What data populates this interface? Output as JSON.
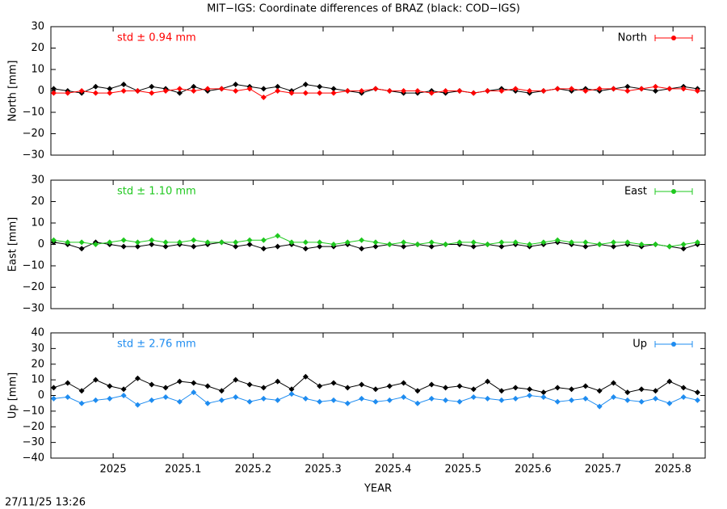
{
  "title": "MIT−IGS: Coordinate differences of BRAZ (black: COD−IGS)",
  "timestamp": "27/11/25 13:26",
  "chart_data": [
    {
      "type": "line",
      "ylabel": "North [mm]",
      "annotation": "std ± 0.94 mm",
      "x": [
        2024.915,
        2024.935,
        2024.955,
        2024.975,
        2024.995,
        2025.015,
        2025.035,
        2025.055,
        2025.075,
        2025.095,
        2025.115,
        2025.135,
        2025.155,
        2025.175,
        2025.195,
        2025.215,
        2025.235,
        2025.255,
        2025.275,
        2025.295,
        2025.315,
        2025.335,
        2025.355,
        2025.375,
        2025.395,
        2025.415,
        2025.435,
        2025.455,
        2025.475,
        2025.495,
        2025.515,
        2025.535,
        2025.555,
        2025.575,
        2025.595,
        2025.615,
        2025.635,
        2025.655,
        2025.675,
        2025.695,
        2025.715,
        2025.735,
        2025.755,
        2025.775,
        2025.795,
        2025.815,
        2025.835
      ],
      "xlim": [
        2024.911,
        2025.846
      ],
      "ylim": [
        -30,
        30
      ],
      "yticks": [
        {
          "value": -30,
          "label": "−30"
        },
        {
          "value": -20,
          "label": "−20"
        },
        {
          "value": -10,
          "label": "−10"
        },
        0,
        10,
        20,
        30
      ],
      "series": [
        {
          "color": "#000000",
          "values": [
            1,
            0,
            -1,
            2,
            1,
            3,
            0,
            2,
            1,
            -1,
            2,
            0,
            1,
            3,
            2,
            1,
            2,
            0,
            3,
            2,
            1,
            0,
            -1,
            1,
            0,
            -1,
            -1,
            0,
            -1,
            0,
            -1,
            0,
            1,
            0,
            -1,
            0,
            1,
            0,
            1,
            0,
            1,
            2,
            1,
            0,
            1,
            2,
            1
          ]
        },
        {
          "name": "North",
          "color": "#ff0000",
          "values": [
            -1,
            -1,
            0,
            -1,
            -1,
            0,
            0,
            -1,
            0,
            1,
            0,
            1,
            1,
            0,
            1,
            -3,
            0,
            -1,
            -1,
            -1,
            -1,
            0,
            0,
            1,
            0,
            0,
            0,
            -1,
            0,
            0,
            -1,
            0,
            0,
            1,
            0,
            0,
            1,
            1,
            0,
            1,
            1,
            0,
            1,
            2,
            1,
            1,
            0
          ]
        }
      ]
    },
    {
      "type": "line",
      "ylabel": "East [mm]",
      "annotation": "std ± 1.10 mm",
      "x": [
        2024.915,
        2024.935,
        2024.955,
        2024.975,
        2024.995,
        2025.015,
        2025.035,
        2025.055,
        2025.075,
        2025.095,
        2025.115,
        2025.135,
        2025.155,
        2025.175,
        2025.195,
        2025.215,
        2025.235,
        2025.255,
        2025.275,
        2025.295,
        2025.315,
        2025.335,
        2025.355,
        2025.375,
        2025.395,
        2025.415,
        2025.435,
        2025.455,
        2025.475,
        2025.495,
        2025.515,
        2025.535,
        2025.555,
        2025.575,
        2025.595,
        2025.615,
        2025.635,
        2025.655,
        2025.675,
        2025.695,
        2025.715,
        2025.735,
        2025.755,
        2025.775,
        2025.795,
        2025.815,
        2025.835
      ],
      "xlim": [
        2024.911,
        2025.846
      ],
      "ylim": [
        -30,
        30
      ],
      "yticks": [
        {
          "value": -30,
          "label": "−30"
        },
        {
          "value": -20,
          "label": "−20"
        },
        {
          "value": -10,
          "label": "−10"
        },
        0,
        10,
        20,
        30
      ],
      "series": [
        {
          "color": "#000000",
          "values": [
            1,
            0,
            -2,
            1,
            0,
            -1,
            -1,
            0,
            -1,
            0,
            -1,
            0,
            1,
            -1,
            0,
            -2,
            -1,
            0,
            -2,
            -1,
            -1,
            0,
            -2,
            -1,
            0,
            -1,
            0,
            -1,
            0,
            0,
            -1,
            0,
            -1,
            0,
            -1,
            0,
            1,
            0,
            -1,
            0,
            -1,
            0,
            -1,
            0,
            -1,
            -2,
            0
          ]
        },
        {
          "name": "East",
          "color": "#1ec81e",
          "values": [
            2,
            1,
            1,
            0,
            1,
            2,
            1,
            2,
            1,
            1,
            2,
            1,
            1,
            1,
            2,
            2,
            4,
            1,
            1,
            1,
            0,
            1,
            2,
            1,
            0,
            1,
            0,
            1,
            0,
            1,
            1,
            0,
            1,
            1,
            0,
            1,
            2,
            1,
            1,
            0,
            1,
            1,
            0,
            0,
            -1,
            0,
            1
          ]
        }
      ]
    },
    {
      "type": "line",
      "ylabel": "Up [mm]",
      "annotation": "std ± 2.76 mm",
      "xlabel": "YEAR",
      "x": [
        2024.915,
        2024.935,
        2024.955,
        2024.975,
        2024.995,
        2025.015,
        2025.035,
        2025.055,
        2025.075,
        2025.095,
        2025.115,
        2025.135,
        2025.155,
        2025.175,
        2025.195,
        2025.215,
        2025.235,
        2025.255,
        2025.275,
        2025.295,
        2025.315,
        2025.335,
        2025.355,
        2025.375,
        2025.395,
        2025.415,
        2025.435,
        2025.455,
        2025.475,
        2025.495,
        2025.515,
        2025.535,
        2025.555,
        2025.575,
        2025.595,
        2025.615,
        2025.635,
        2025.655,
        2025.675,
        2025.695,
        2025.715,
        2025.735,
        2025.755,
        2025.775,
        2025.795,
        2025.815,
        2025.835
      ],
      "xlim": [
        2024.911,
        2025.846
      ],
      "xticks": [
        2025,
        2025.1,
        2025.2,
        2025.3,
        2025.4,
        2025.5,
        2025.6,
        2025.7,
        2025.8
      ],
      "ylim": [
        -40,
        40
      ],
      "yticks": [
        {
          "value": -40,
          "label": "−40"
        },
        {
          "value": -30,
          "label": "−30"
        },
        {
          "value": -20,
          "label": "−20"
        },
        {
          "value": -10,
          "label": "−10"
        },
        0,
        10,
        20,
        30,
        40
      ],
      "series": [
        {
          "color": "#000000",
          "values": [
            5,
            8,
            3,
            10,
            6,
            4,
            11,
            7,
            5,
            9,
            8,
            6,
            3,
            10,
            7,
            5,
            9,
            4,
            12,
            6,
            8,
            5,
            7,
            4,
            6,
            8,
            3,
            7,
            5,
            6,
            4,
            9,
            3,
            5,
            4,
            2,
            5,
            4,
            6,
            3,
            8,
            2,
            4,
            3,
            9,
            5,
            2
          ]
        },
        {
          "name": "Up",
          "color": "#1e8cf0",
          "values": [
            -2,
            -1,
            -5,
            -3,
            -2,
            0,
            -6,
            -3,
            -1,
            -4,
            2,
            -5,
            -3,
            -1,
            -4,
            -2,
            -3,
            1,
            -2,
            -4,
            -3,
            -5,
            -2,
            -4,
            -3,
            -1,
            -5,
            -2,
            -3,
            -4,
            -1,
            -2,
            -3,
            -2,
            0,
            -1,
            -4,
            -3,
            -2,
            -7,
            -1,
            -3,
            -4,
            -2,
            -5,
            -1,
            -3
          ]
        }
      ]
    }
  ]
}
